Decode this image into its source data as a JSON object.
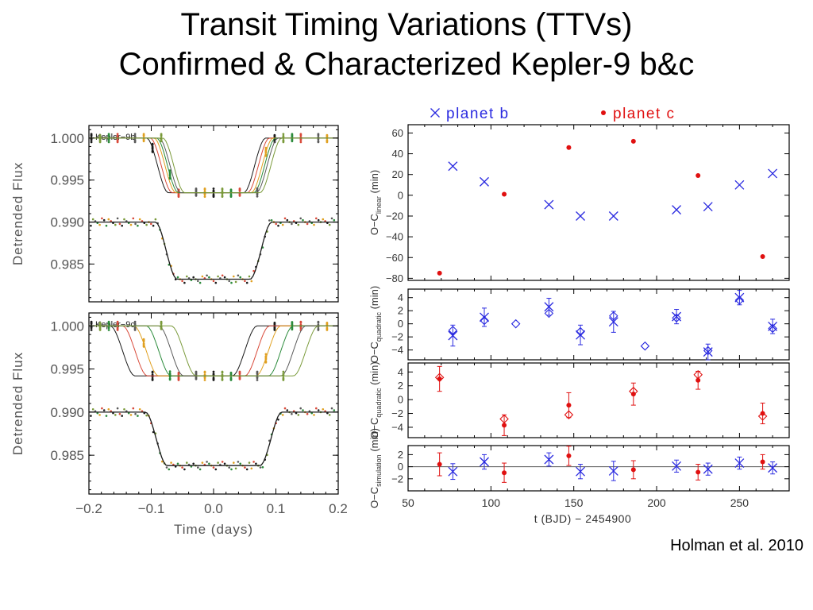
{
  "slide": {
    "title_line1": "Transit Timing Variations (TTVs)",
    "title_line2": "Confirmed & Characterized Kepler-9 b&c",
    "citation": "Holman et al. 2010"
  },
  "colors": {
    "planet_b": "#2a2ae0",
    "planet_c": "#e01010",
    "frame": "#000000",
    "axis_text": "#555555"
  },
  "chart_data": [
    {
      "type": "line",
      "panel_label": "Kepler−9b",
      "xlabel": "",
      "ylabel": "Detrended Flux",
      "xlim": [
        -0.2,
        0.2
      ],
      "ylim": [
        0.9805,
        1.0015
      ],
      "y_ticks": [
        "1.000",
        "0.995",
        "0.990",
        "0.985"
      ],
      "y_tick_values": [
        1.0,
        0.995,
        0.99,
        0.985
      ],
      "upper_curve": {
        "baseline": 1.0,
        "depth": 0.0065,
        "half_width": 0.078,
        "ingress": 0.035,
        "center_offsets": [
          -0.012,
          -0.006,
          0.0,
          0.004,
          0.008,
          0.014
        ]
      },
      "lower_curve": {
        "baseline": 0.99,
        "depth": 0.0068,
        "half_width": 0.076,
        "ingress": 0.035
      }
    },
    {
      "type": "line",
      "panel_label": "Kepler−9c",
      "xlabel": "Time (days)",
      "ylabel": "Detrended Flux",
      "xlim": [
        -0.2,
        0.2
      ],
      "ylim": [
        0.9805,
        1.0015
      ],
      "x_ticks": [
        "−0.2",
        "−0.1",
        "0.0",
        "0.1",
        "0.2"
      ],
      "x_tick_values": [
        -0.2,
        -0.1,
        0.0,
        0.1,
        0.2
      ],
      "y_ticks": [
        "1.000",
        "0.995",
        "0.990",
        "0.985"
      ],
      "y_tick_values": [
        1.0,
        0.995,
        0.99,
        0.985
      ],
      "upper_curve": {
        "baseline": 1.0,
        "depth": 0.0058,
        "half_width": 0.098,
        "ingress": 0.04,
        "center_offsets": [
          -0.048,
          -0.028,
          -0.01,
          0.01,
          0.03,
          0.05
        ]
      },
      "lower_curve": {
        "baseline": 0.99,
        "depth": 0.0062,
        "half_width": 0.092,
        "ingress": 0.035
      }
    },
    {
      "type": "scatter",
      "legend": [
        "planet b",
        "planet c"
      ],
      "legend_placement": "top",
      "ylabel": "O−C_linear (min)",
      "xlim": [
        50,
        280
      ],
      "ylim": [
        -82,
        68
      ],
      "y_ticks": [
        "60",
        "40",
        "20",
        "0",
        "−20",
        "−40",
        "−60",
        "−80"
      ],
      "y_tick_values": [
        60,
        40,
        20,
        0,
        -20,
        -40,
        -60,
        -80
      ],
      "series": [
        {
          "name": "planet b",
          "marker": "x",
          "x": [
            77,
            96,
            135,
            154,
            174,
            212,
            231,
            250,
            270
          ],
          "y": [
            28,
            13,
            -9,
            -20,
            -20,
            -14,
            -11,
            10,
            21
          ]
        },
        {
          "name": "planet c",
          "marker": "dot",
          "x": [
            69,
            108,
            147,
            186,
            225,
            264
          ],
          "y": [
            -75,
            1,
            46,
            52,
            19,
            -59
          ]
        }
      ]
    },
    {
      "type": "scatter",
      "ylabel": "O−C_quadratic (min)",
      "xlim": [
        50,
        280
      ],
      "ylim": [
        -5.5,
        5.3
      ],
      "y_ticks": [
        "4",
        "2",
        "0",
        "−2",
        "−4"
      ],
      "y_tick_values": [
        4,
        2,
        0,
        -2,
        -4
      ],
      "series": [
        {
          "name": "planet b",
          "marker": "x",
          "x": [
            77,
            96,
            135,
            154,
            174,
            212,
            231,
            250,
            270
          ],
          "y": [
            -1.8,
            1.0,
            2.6,
            -1.7,
            0.3,
            1.1,
            -4.3,
            4.0,
            -0.4
          ],
          "err": [
            1.6,
            1.4,
            1.3,
            1.5,
            1.6,
            1.1,
            1.2,
            1.1,
            1.1
          ]
        },
        {
          "name": "model b",
          "marker": "diamond",
          "x": [
            77,
            96,
            115,
            135,
            154,
            174,
            193,
            212,
            231,
            250,
            270
          ],
          "y": [
            -1.0,
            0.5,
            0.0,
            1.6,
            -1.2,
            1.2,
            -3.4,
            0.9,
            -4.1,
            3.6,
            -0.7
          ]
        }
      ]
    },
    {
      "type": "scatter",
      "ylabel": "O−C_quadratic (min)",
      "xlim": [
        50,
        280
      ],
      "ylim": [
        -5.5,
        5.3
      ],
      "y_ticks": [
        "4",
        "2",
        "0",
        "−2",
        "−4"
      ],
      "y_tick_values": [
        4,
        2,
        0,
        -2,
        -4
      ],
      "series": [
        {
          "name": "planet c",
          "marker": "dot",
          "x": [
            69,
            108,
            147,
            186,
            225,
            264
          ],
          "y": [
            3.0,
            -3.7,
            -0.8,
            0.8,
            2.8,
            -2.0
          ],
          "err": [
            1.8,
            1.5,
            1.8,
            1.6,
            1.3,
            1.5
          ]
        },
        {
          "name": "model c",
          "marker": "diamond",
          "x": [
            69,
            108,
            147,
            186,
            225,
            264
          ],
          "y": [
            3.2,
            -2.8,
            -2.2,
            1.2,
            3.6,
            -2.4
          ]
        }
      ]
    },
    {
      "type": "scatter",
      "ylabel": "O−C_simulation (min)",
      "xlabel": "t (BJD) − 2454900",
      "xlim": [
        50,
        280
      ],
      "ylim": [
        -4,
        3.5
      ],
      "x_ticks": [
        "50",
        "100",
        "150",
        "200",
        "250"
      ],
      "x_tick_values": [
        50,
        100,
        150,
        200,
        250
      ],
      "y_ticks": [
        "2",
        "0",
        "−2"
      ],
      "y_tick_values": [
        2,
        0,
        -2
      ],
      "zero_line": true,
      "series": [
        {
          "name": "planet b",
          "marker": "x",
          "x": [
            77,
            96,
            135,
            154,
            174,
            212,
            231,
            250,
            270
          ],
          "y": [
            -0.8,
            0.8,
            1.2,
            -0.8,
            -0.7,
            0.1,
            -0.4,
            0.6,
            -0.2
          ],
          "err": [
            1.3,
            1.2,
            1.1,
            1.2,
            1.6,
            1.0,
            1.0,
            1.0,
            1.0
          ]
        },
        {
          "name": "planet c",
          "marker": "dot",
          "x": [
            69,
            108,
            147,
            186,
            225,
            264
          ],
          "y": [
            0.4,
            -1.0,
            1.8,
            -0.5,
            -0.9,
            0.8
          ],
          "err": [
            1.9,
            1.6,
            1.6,
            1.5,
            1.3,
            1.2
          ]
        }
      ]
    }
  ]
}
